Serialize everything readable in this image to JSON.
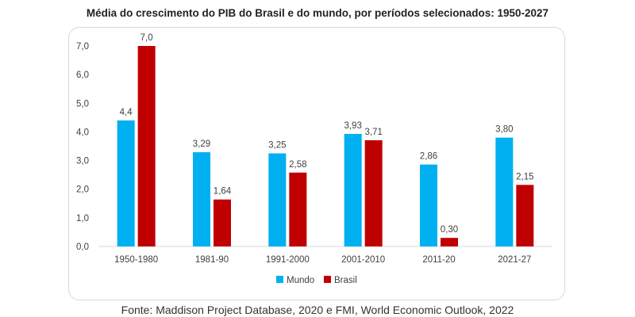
{
  "title": "Média do crescimento do PIB do Brasil e do mundo, por períodos selecionados: 1950-2027",
  "source": "Fonte: Maddison Project Database, 2020 e FMI, World Economic Outlook, 2022",
  "chart_data": {
    "type": "bar",
    "title": "Média do crescimento do PIB do Brasil e do mundo, por períodos selecionados: 1950-2027",
    "xlabel": "",
    "ylabel": "",
    "categories": [
      "1950-1980",
      "1981-90",
      "1991-2000",
      "2001-2010",
      "2011-20",
      "2021-27"
    ],
    "series": [
      {
        "name": "Mundo",
        "color": "#00b0f0",
        "values": [
          4.4,
          3.29,
          3.25,
          3.93,
          2.86,
          3.8
        ],
        "labels": [
          "4,4",
          "3,29",
          "3,25",
          "3,93",
          "2,86",
          "3,80"
        ]
      },
      {
        "name": "Brasil",
        "color": "#c00000",
        "values": [
          7.0,
          1.64,
          2.58,
          3.71,
          0.3,
          2.15
        ],
        "labels": [
          "7,0",
          "1,64",
          "2,58",
          "3,71",
          "0,30",
          "2,15"
        ]
      }
    ],
    "ylim": [
      0,
      7
    ],
    "yticks": [
      0,
      1,
      2,
      3,
      4,
      5,
      6,
      7
    ],
    "ytick_labels": [
      "0,0",
      "1,0",
      "2,0",
      "3,0",
      "4,0",
      "5,0",
      "6,0",
      "7,0"
    ],
    "grid": false,
    "legend": "bottom"
  }
}
